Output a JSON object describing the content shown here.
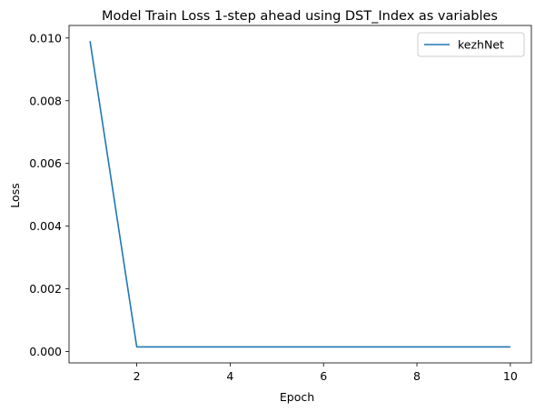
{
  "chart_data": {
    "type": "line",
    "title": "Model Train Loss 1-step ahead using DST_Index as variables",
    "xlabel": "Epoch",
    "ylabel": "Loss",
    "xlim": [
      0.55,
      10.45
    ],
    "ylim": [
      -0.00036,
      0.0104
    ],
    "xticks": [
      2,
      4,
      6,
      8,
      10
    ],
    "xtick_labels": [
      "2",
      "4",
      "6",
      "8",
      "10"
    ],
    "yticks": [
      0.0,
      0.002,
      0.004,
      0.006,
      0.008,
      0.01
    ],
    "ytick_labels": [
      "0.000",
      "0.002",
      "0.004",
      "0.006",
      "0.008",
      "0.010"
    ],
    "grid": false,
    "legend_position": "top-right",
    "color": "#1f77b4",
    "series": [
      {
        "name": "kezhNet",
        "x": [
          1,
          2,
          3,
          4,
          5,
          6,
          7,
          8,
          9,
          10
        ],
        "values": [
          0.0099,
          0.00015,
          0.00015,
          0.00015,
          0.00015,
          0.00015,
          0.00015,
          0.00015,
          0.00015,
          0.00015
        ]
      }
    ]
  }
}
